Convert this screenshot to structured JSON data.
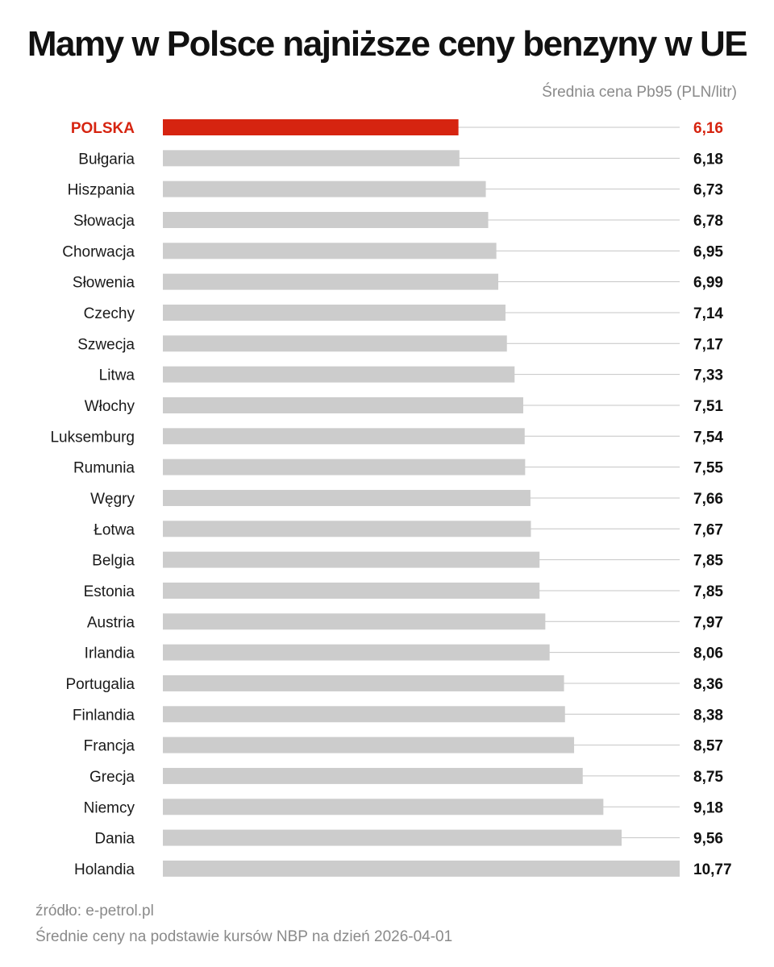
{
  "title": "Mamy w Polsce najniższe ceny benzyny w UE",
  "subtitle": "Średnia cena Pb95 (PLN/litr)",
  "footer": {
    "source": "źródło: e-petrol.pl",
    "note": "Średnie ceny na podstawie kursów NBP na dzień 2026-04-01"
  },
  "colors": {
    "highlight": "#d62410",
    "bar": "#cccccc",
    "guide": "#c4c4c4"
  },
  "chart_data": {
    "type": "bar",
    "orientation": "horizontal",
    "title": "Mamy w Polsce najniższe ceny benzyny w UE",
    "unit": "PLN/litr",
    "highlight_category": "POLSKA",
    "categories": [
      "POLSKA",
      "Bułgaria",
      "Hiszpania",
      "Słowacja",
      "Chorwacja",
      "Słowenia",
      "Czechy",
      "Szwecja",
      "Litwa",
      "Włochy",
      "Luksemburg",
      "Rumunia",
      "Węgry",
      "Łotwa",
      "Belgia",
      "Estonia",
      "Austria",
      "Irlandia",
      "Portugalia",
      "Finlandia",
      "Francja",
      "Grecja",
      "Niemcy",
      "Dania",
      "Holandia"
    ],
    "values": [
      6.16,
      6.18,
      6.73,
      6.78,
      6.95,
      6.99,
      7.14,
      7.17,
      7.33,
      7.51,
      7.54,
      7.55,
      7.66,
      7.67,
      7.85,
      7.85,
      7.97,
      8.06,
      8.36,
      8.38,
      8.57,
      8.75,
      9.18,
      9.56,
      10.77
    ],
    "value_labels": [
      "6,16",
      "6,18",
      "6,73",
      "6,78",
      "6,95",
      "6,99",
      "7,14",
      "7,17",
      "7,33",
      "7,51",
      "7,54",
      "7,55",
      "7,66",
      "7,67",
      "7,85",
      "7,85",
      "7,97",
      "8,06",
      "8,36",
      "8,38",
      "8,57",
      "8,75",
      "9,18",
      "9,56",
      "10,77"
    ],
    "xlim": [
      0,
      10.77
    ]
  }
}
